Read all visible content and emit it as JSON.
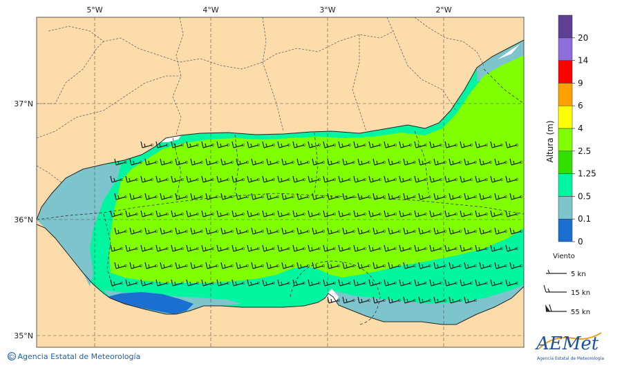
{
  "map": {
    "lon_ticks": [
      "5°W",
      "4°W",
      "3°W",
      "2°W"
    ],
    "lat_ticks": [
      "37°N",
      "36°N",
      "35°N"
    ],
    "extent": {
      "lon_min": -5.5,
      "lon_max": -1.3,
      "lat_min": 34.9,
      "lat_max": 37.75
    }
  },
  "colorbar": {
    "title": "Altura (m)",
    "levels": [
      "0",
      "0.1",
      "0.5",
      "1.25",
      "2.5",
      "4",
      "6",
      "9",
      "14",
      "20"
    ],
    "colors": [
      "#1a6fd0",
      "#7ec4cc",
      "#00f5a0",
      "#32e000",
      "#80ff00",
      "#ffff00",
      "#ffa000",
      "#ff0000",
      "#8f6ddb",
      "#5e3f94"
    ]
  },
  "wind_legend": {
    "title": "Viento",
    "items": [
      {
        "label": "5 kn",
        "knots": 5
      },
      {
        "label": "15 kn",
        "knots": 15
      },
      {
        "label": "55 kn",
        "knots": 55
      }
    ]
  },
  "footer": {
    "copyright": "© Agencia Estatal de Meteorología"
  },
  "logo": {
    "text": "AEMet",
    "subtitle": "Agencia Estatal de Meteorología"
  },
  "colors": {
    "land": "#fcdcaa",
    "sea_green": "#80ff00",
    "sea_mint": "#00f5a0",
    "sea_teal": "#7ec4cc",
    "sea_blue": "#1a6fd0"
  },
  "wind_field": {
    "direction": "westerly",
    "typical_speed_kn": 15
  }
}
